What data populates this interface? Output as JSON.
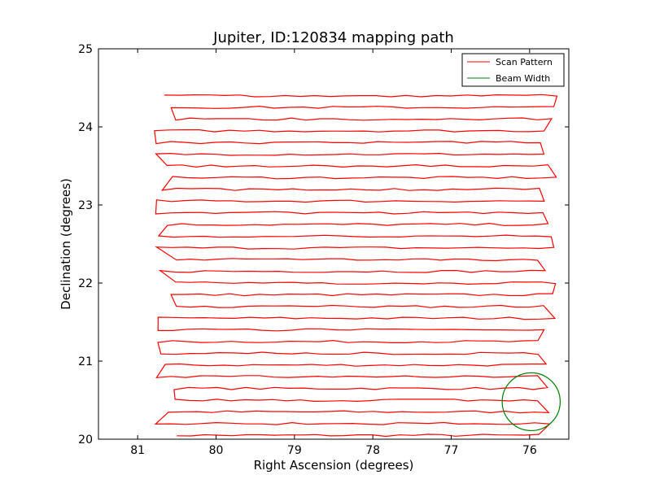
{
  "chart_data": {
    "type": "line",
    "title": "Jupiter, ID:120834 mapping path",
    "xlabel": "Right Ascension (degrees)",
    "ylabel": "Declination (degrees)",
    "xlim": [
      81.5,
      75.5
    ],
    "ylim": [
      20,
      25
    ],
    "x_ticks": [
      81,
      80,
      79,
      78,
      77,
      76
    ],
    "y_ticks": [
      20,
      21,
      22,
      23,
      24,
      25
    ],
    "x_tick_labels": [
      "81",
      "80",
      "79",
      "78",
      "77",
      "76"
    ],
    "y_tick_labels": [
      "20",
      "21",
      "22",
      "23",
      "24",
      "25"
    ],
    "grid": false,
    "legend_position": "top-right",
    "series": [
      {
        "name": "Scan Pattern",
        "color": "#ff0000",
        "style": "raster-scan",
        "rows_start_dec": 20.05,
        "row_spacing_deg": 0.15,
        "row_count": 30,
        "ra_west": 80.65,
        "ra_east": 75.75
      },
      {
        "name": "Beam Width",
        "color": "#008000",
        "style": "circle",
        "center": [
          75.98,
          20.48
        ],
        "radius_deg": 0.37
      }
    ]
  }
}
